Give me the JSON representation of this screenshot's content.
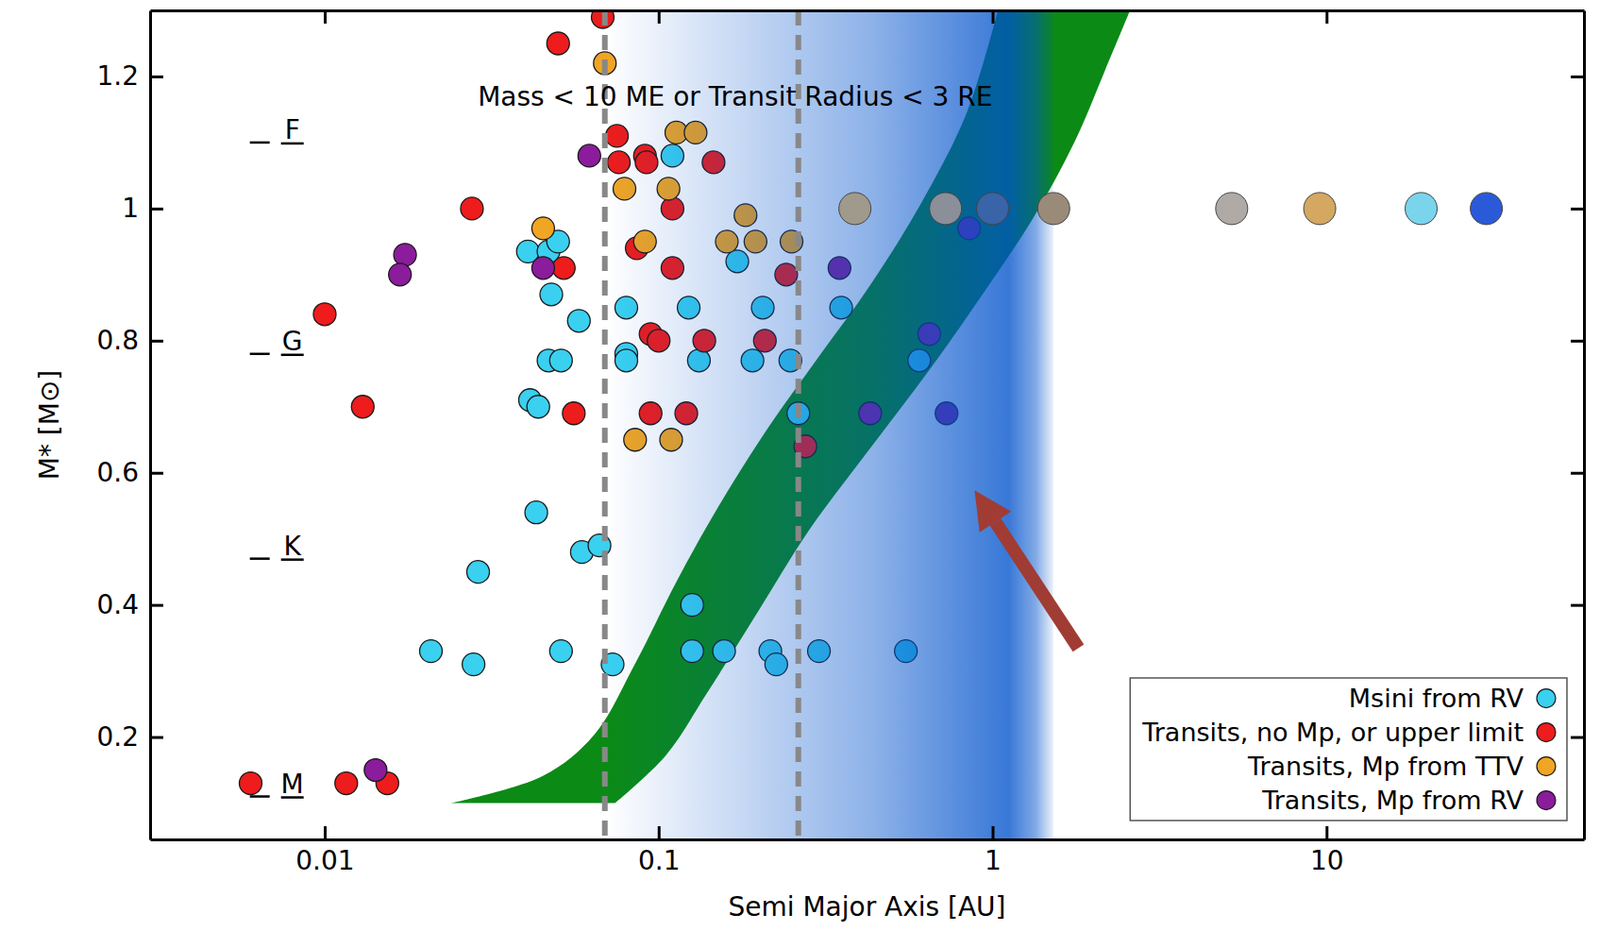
{
  "chart_data": {
    "type": "scatter",
    "title": "Mass < 10 ME or Transit Radius < 3 RE",
    "x_label": "Semi Major Axis [AU]",
    "y_label": "M* [M⊙]",
    "log": "x",
    "grid": false,
    "legend": "lower right",
    "xlim": [
      0.003,
      59
    ],
    "xticks": [
      0.01,
      0.1,
      1,
      10
    ],
    "ylim": [
      0.045,
      1.3
    ],
    "yticks": [
      0.2,
      0.4,
      0.6,
      0.8,
      1,
      1.2
    ],
    "series": [
      {
        "name": "Msini from RV",
        "color": "#3ad0f0",
        "marker": "circle",
        "x": [
          0.11,
          0.0406,
          0.0468,
          0.05,
          0.172,
          0.0477,
          0.0577,
          0.08,
          0.123,
          0.205,
          0.352,
          0.08,
          0.0468,
          0.051,
          0.08,
          0.132,
          0.191,
          0.248,
          0.603,
          0.0412,
          0.0436,
          0.262,
          0.043,
          0.0589,
          0.0665,
          0.0288,
          0.126,
          0.0208,
          0.0279,
          0.051,
          0.0728,
          0.126,
          0.157,
          0.216,
          0.225,
          0.302,
          0.55
        ],
        "values": [
          1.08,
          0.935,
          0.935,
          0.95,
          0.92,
          0.87,
          0.83,
          0.85,
          0.85,
          0.85,
          0.85,
          0.78,
          0.77,
          0.77,
          0.77,
          0.77,
          0.77,
          0.77,
          0.77,
          0.71,
          0.7,
          0.69,
          0.54,
          0.48,
          0.49,
          0.45,
          0.4,
          0.33,
          0.31,
          0.33,
          0.31,
          0.33,
          0.33,
          0.33,
          0.31,
          0.33,
          0.33
        ]
      },
      {
        "name": "Transits, no Mp, or upper limit",
        "color": "#ee1c1c",
        "marker": "circle",
        "x": [
          0.068,
          0.05,
          0.075,
          0.076,
          0.091,
          0.092,
          0.146,
          0.0276,
          0.11,
          0.052,
          0.086,
          0.11,
          0.241,
          0.01,
          0.0946,
          0.1,
          0.137,
          0.208,
          0.013,
          0.0557,
          0.0946,
          0.121,
          0.275,
          0.006,
          0.0116,
          0.0154
        ],
        "values": [
          1.29,
          1.25,
          1.11,
          1.07,
          1.08,
          1.07,
          1.07,
          1,
          1,
          0.91,
          0.94,
          0.91,
          0.9,
          0.84,
          0.81,
          0.8,
          0.8,
          0.8,
          0.7,
          0.69,
          0.69,
          0.69,
          0.64,
          0.13,
          0.13,
          0.13
        ]
      },
      {
        "name": "Transits, Mp from TTV",
        "color": "#f0a524",
        "marker": "circle",
        "x": [
          0.069,
          0.113,
          0.129,
          0.079,
          0.107,
          0.182,
          0.0451,
          0.091,
          0.16,
          0.195,
          0.25,
          0.085,
          0.109
        ],
        "values": [
          1.22,
          1.115,
          1.115,
          1.03,
          1.03,
          0.99,
          0.97,
          0.95,
          0.95,
          0.95,
          0.95,
          0.65,
          0.65
        ]
      },
      {
        "name": "Transits, Mp from RV",
        "color": "#8b1c9c",
        "marker": "circle",
        "x": [
          0.062,
          0.0174,
          0.0168,
          0.0451,
          0.348,
          0.851,
          0.646,
          0.43,
          0.728,
          0.0142
        ],
        "values": [
          1.08,
          0.93,
          0.9,
          0.91,
          0.91,
          0.97,
          0.81,
          0.69,
          0.69,
          0.15
        ]
      }
    ],
    "solar_system": {
      "x": [
        0.387,
        0.723,
        1.0,
        1.524,
        5.2,
        9.54,
        19.2,
        30.1
      ],
      "y": [
        1,
        1,
        1,
        1,
        1,
        1,
        1,
        1
      ],
      "colors": [
        "#a09a8c",
        "#8a8f9a",
        "#3a64a8",
        "#9a8a78",
        "#b0aaa6",
        "#d4a860",
        "#7ad4ec",
        "#2a5ad8"
      ]
    },
    "habitable_zone": {
      "color": "#0b8a16",
      "inner": {
        "x": [
          0.0239,
          0.045,
          0.064,
          0.085,
          0.113,
          0.149,
          0.212,
          0.302,
          0.43,
          0.611,
          0.84,
          1.04
        ],
        "y": [
          0.1,
          0.141,
          0.203,
          0.311,
          0.435,
          0.544,
          0.667,
          0.776,
          0.884,
          1.008,
          1.147,
          1.302
        ]
      },
      "outer": {
        "x": [
          0.074,
          0.105,
          0.139,
          0.198,
          0.282,
          0.43,
          0.656,
          0.93,
          1.32,
          1.76,
          2.17,
          2.59
        ],
        "y": [
          0.1,
          0.172,
          0.265,
          0.389,
          0.513,
          0.637,
          0.76,
          0.869,
          0.985,
          1.101,
          1.209,
          1.302
        ]
      }
    },
    "shaded_region": {
      "x": [
        0.069,
        1.52
      ],
      "color": "#0052cc"
    },
    "reference_lines": {
      "x": [
        0.069,
        0.262
      ],
      "color": "#888888",
      "line_style": "dashed"
    },
    "spectral_types": {
      "labels": [
        "F",
        "G",
        "K",
        "M"
      ],
      "x": 0.008,
      "y": [
        1.1,
        0.78,
        0.47,
        0.11
      ]
    }
  }
}
